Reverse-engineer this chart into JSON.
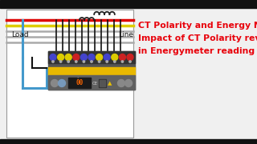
{
  "title_line1": "CT Polarity and Energy Meter",
  "title_line2": "Impact of CT Polarity reverse",
  "title_line3": "in Energymeter reading",
  "title_color": "#e8000a",
  "bg_color": "#f0f0f0",
  "load_label": "Load",
  "line_label": "Line",
  "wire_colors_h": [
    "#dd0000",
    "#ddcc00",
    "#aaaaaa",
    "#aaaaaa",
    "#aaaaaa"
  ],
  "blue_wire_color": "#4499cc",
  "black_wire_color": "#111111",
  "ct_color": "#222222",
  "meter_bg": "#555555",
  "meter_terminal_bg": "#333333",
  "meter_yellow_stripe": "#e8b800",
  "meter_lower_bg": "#666666",
  "terminal_colors": [
    "#4444cc",
    "#ddcc00",
    "#ddcc00",
    "#cc2222",
    "#4444cc",
    "#4444cc",
    "#ddcc00",
    "#4444cc",
    "#ddcc00",
    "#cc2222",
    "#cc2222"
  ],
  "border_top_bottom": "#111111",
  "outer_rect_edge": "#999999"
}
